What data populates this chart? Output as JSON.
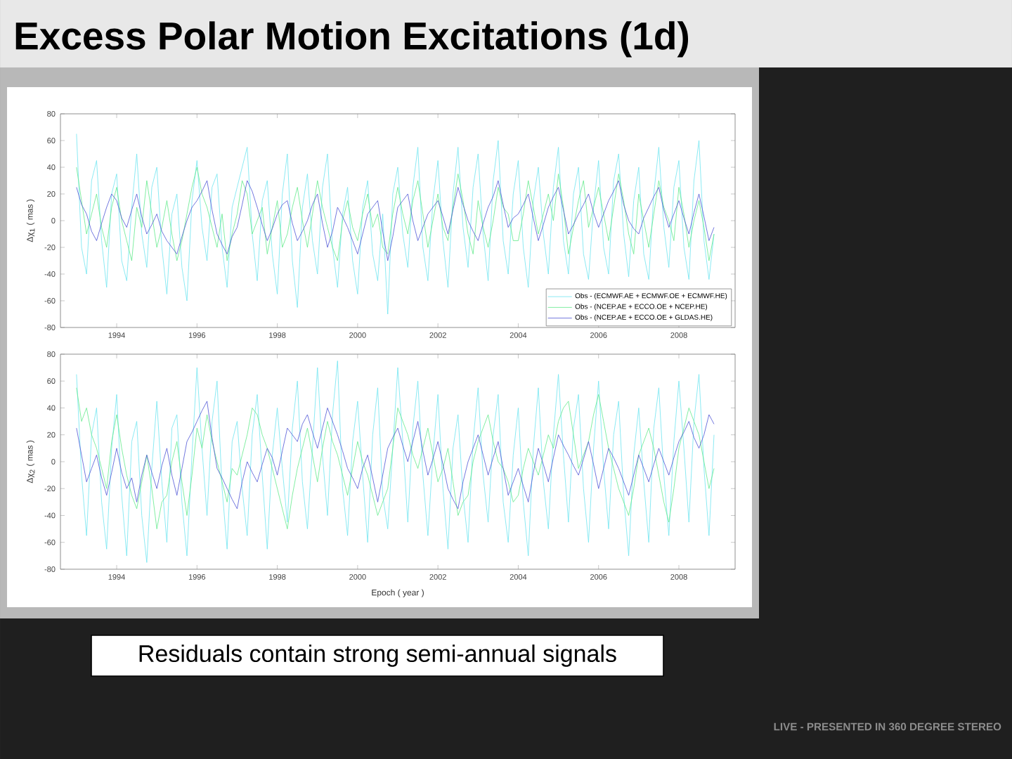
{
  "chart_data": [
    {
      "type": "line",
      "title": "Excess Polar Motion Excitations (1d)",
      "ylabel": "Δχ$_{1}$ ( mas )",
      "annotations": [
        "Residuals contain strong semi-annual signals",
        "LIVE - PRESENTED IN 360 DEGREE STEREO"
      ],
      "x": [
        1993,
        1993.125,
        1993.25,
        1993.375,
        1993.5,
        1993.625,
        1993.75,
        1993.875,
        1994,
        1994.125,
        1994.25,
        1994.375,
        1994.5,
        1994.625,
        1994.75,
        1994.875,
        1995,
        1995.125,
        1995.25,
        1995.375,
        1995.5,
        1995.625,
        1995.75,
        1995.875,
        1996,
        1996.125,
        1996.25,
        1996.375,
        1996.5,
        1996.625,
        1996.75,
        1996.875,
        1997,
        1997.125,
        1997.25,
        1997.375,
        1997.5,
        1997.625,
        1997.75,
        1997.875,
        1998,
        1998.125,
        1998.25,
        1998.375,
        1998.5,
        1998.625,
        1998.75,
        1998.875,
        1999,
        1999.125,
        1999.25,
        1999.375,
        1999.5,
        1999.625,
        1999.75,
        1999.875,
        2000,
        2000.125,
        2000.25,
        2000.375,
        2000.5,
        2000.625,
        2000.75,
        2000.875,
        2001,
        2001.125,
        2001.25,
        2001.375,
        2001.5,
        2001.625,
        2001.75,
        2001.875,
        2002,
        2002.125,
        2002.25,
        2002.375,
        2002.5,
        2002.625,
        2002.75,
        2002.875,
        2003,
        2003.125,
        2003.25,
        2003.375,
        2003.5,
        2003.625,
        2003.75,
        2003.875,
        2004,
        2004.125,
        2004.25,
        2004.375,
        2004.5,
        2004.625,
        2004.75,
        2004.875,
        2005,
        2005.125,
        2005.25,
        2005.375,
        2005.5,
        2005.625,
        2005.75,
        2005.875,
        2006,
        2006.125,
        2006.25,
        2006.375,
        2006.5,
        2006.625,
        2006.75,
        2006.875,
        2007,
        2007.125,
        2007.25,
        2007.375,
        2007.5,
        2007.625,
        2007.75,
        2007.875,
        2008,
        2008.125,
        2008.25,
        2008.375,
        2008.5,
        2008.625,
        2008.75,
        2008.875
      ],
      "xlim": [
        1992.6,
        2009.4
      ],
      "xticks": [
        1994,
        1996,
        1998,
        2000,
        2002,
        2004,
        2006,
        2008
      ],
      "ylim": [
        -80,
        80
      ],
      "yticks": [
        -80,
        -60,
        -40,
        -20,
        0,
        20,
        40,
        60,
        80
      ],
      "legend": "bottom right",
      "marker": "none",
      "series": [
        {
          "name": "Obs - (ECMWF.AE + ECMWF.OE + ECMWF.HE)",
          "color": "#6ee4f0",
          "values": [
            65,
            -20,
            -40,
            30,
            45,
            -15,
            -50,
            20,
            35,
            -30,
            -45,
            10,
            50,
            -10,
            -35,
            25,
            40,
            -20,
            -55,
            5,
            20,
            -35,
            -60,
            15,
            45,
            -5,
            -30,
            25,
            35,
            -20,
            -50,
            10,
            25,
            40,
            55,
            -10,
            -45,
            15,
            30,
            -25,
            -55,
            20,
            50,
            -30,
            -65,
            10,
            35,
            -15,
            -40,
            25,
            50,
            -20,
            -50,
            5,
            25,
            -30,
            -55,
            10,
            30,
            -25,
            -45,
            5,
            -70,
            20,
            40,
            -10,
            -35,
            25,
            55,
            -20,
            -45,
            15,
            45,
            -15,
            -50,
            20,
            55,
            -5,
            -35,
            25,
            50,
            -10,
            -45,
            30,
            60,
            -15,
            -40,
            20,
            45,
            -20,
            -50,
            15,
            40,
            -10,
            -40,
            25,
            55,
            -15,
            -40,
            20,
            40,
            -25,
            -44,
            10,
            45,
            -20,
            -40,
            30,
            50,
            -10,
            -42,
            15,
            40,
            -25,
            -44,
            20,
            55,
            -5,
            -35,
            25,
            45,
            -20,
            -44,
            30,
            60,
            -15,
            -44,
            -10
          ]
        },
        {
          "name": "Obs - (NCEP.AE + ECCO.OE + NCEP.HE)",
          "color": "#62ea8c",
          "values": [
            40,
            15,
            -10,
            5,
            20,
            -5,
            -20,
            10,
            25,
            0,
            -15,
            -30,
            10,
            -5,
            30,
            5,
            -20,
            -5,
            15,
            -10,
            -30,
            -15,
            5,
            25,
            40,
            20,
            10,
            -5,
            -20,
            5,
            -30,
            -10,
            5,
            30,
            20,
            -10,
            0,
            10,
            -25,
            -5,
            15,
            -20,
            -10,
            10,
            25,
            0,
            -20,
            5,
            30,
            10,
            -5,
            -20,
            -30,
            0,
            15,
            -5,
            -15,
            5,
            20,
            -5,
            5,
            -20,
            -25,
            5,
            25,
            5,
            -10,
            15,
            30,
            5,
            -20,
            0,
            20,
            -5,
            -15,
            10,
            35,
            15,
            -10,
            -25,
            15,
            -5,
            -20,
            0,
            25,
            10,
            5,
            -15,
            -15,
            5,
            30,
            10,
            -10,
            5,
            20,
            0,
            35,
            10,
            -25,
            -5,
            15,
            30,
            -5,
            10,
            25,
            5,
            -15,
            10,
            35,
            15,
            -10,
            -25,
            20,
            0,
            -20,
            5,
            30,
            10,
            0,
            -15,
            25,
            5,
            -20,
            0,
            15,
            -5,
            -30,
            -10
          ]
        },
        {
          "name": "Obs - (NCEP.AE + ECCO.OE + GLDAS.HE)",
          "color": "#4f55d6",
          "values": [
            25,
            12,
            5,
            -8,
            -15,
            -2,
            10,
            20,
            15,
            2,
            -5,
            8,
            20,
            3,
            -10,
            -3,
            5,
            -8,
            -15,
            -20,
            -25,
            -12,
            0,
            10,
            15,
            22,
            30,
            8,
            -10,
            -18,
            -25,
            -12,
            -5,
            12,
            30,
            22,
            10,
            -3,
            -15,
            -6,
            5,
            12,
            15,
            -2,
            -15,
            -8,
            0,
            12,
            20,
            -2,
            -20,
            -8,
            10,
            3,
            -5,
            -15,
            -25,
            -10,
            5,
            10,
            15,
            -8,
            -30,
            -12,
            10,
            15,
            20,
            0,
            -15,
            -5,
            5,
            10,
            15,
            3,
            -10,
            8,
            25,
            12,
            0,
            -8,
            -15,
            -2,
            10,
            18,
            30,
            12,
            -5,
            2,
            5,
            12,
            20,
            2,
            -15,
            -3,
            10,
            18,
            25,
            8,
            -10,
            -3,
            5,
            12,
            20,
            6,
            -5,
            5,
            15,
            22,
            30,
            12,
            0,
            -6,
            -10,
            2,
            10,
            18,
            25,
            8,
            -5,
            5,
            15,
            2,
            -10,
            6,
            20,
            3,
            -15,
            -5
          ]
        }
      ]
    },
    {
      "type": "line",
      "xlabel": "Epoch ( year )",
      "ylabel": "Δχ$_{2}$ ( mas )",
      "x": [
        1993,
        1993.125,
        1993.25,
        1993.375,
        1993.5,
        1993.625,
        1993.75,
        1993.875,
        1994,
        1994.125,
        1994.25,
        1994.375,
        1994.5,
        1994.625,
        1994.75,
        1994.875,
        1995,
        1995.125,
        1995.25,
        1995.375,
        1995.5,
        1995.625,
        1995.75,
        1995.875,
        1996,
        1996.125,
        1996.25,
        1996.375,
        1996.5,
        1996.625,
        1996.75,
        1996.875,
        1997,
        1997.125,
        1997.25,
        1997.375,
        1997.5,
        1997.625,
        1997.75,
        1997.875,
        1998,
        1998.125,
        1998.25,
        1998.375,
        1998.5,
        1998.625,
        1998.75,
        1998.875,
        1999,
        1999.125,
        1999.25,
        1999.375,
        1999.5,
        1999.625,
        1999.75,
        1999.875,
        2000,
        2000.125,
        2000.25,
        2000.375,
        2000.5,
        2000.625,
        2000.75,
        2000.875,
        2001,
        2001.125,
        2001.25,
        2001.375,
        2001.5,
        2001.625,
        2001.75,
        2001.875,
        2002,
        2002.125,
        2002.25,
        2002.375,
        2002.5,
        2002.625,
        2002.75,
        2002.875,
        2003,
        2003.125,
        2003.25,
        2003.375,
        2003.5,
        2003.625,
        2003.75,
        2003.875,
        2004,
        2004.125,
        2004.25,
        2004.375,
        2004.5,
        2004.625,
        2004.75,
        2004.875,
        2005,
        2005.125,
        2005.25,
        2005.375,
        2005.5,
        2005.625,
        2005.75,
        2005.875,
        2006,
        2006.125,
        2006.25,
        2006.375,
        2006.5,
        2006.625,
        2006.75,
        2006.875,
        2007,
        2007.125,
        2007.25,
        2007.375,
        2007.5,
        2007.625,
        2007.75,
        2007.875,
        2008,
        2008.125,
        2008.25,
        2008.375,
        2008.5,
        2008.625,
        2008.75,
        2008.875
      ],
      "xlim": [
        1992.6,
        2009.4
      ],
      "xticks": [
        1994,
        1996,
        1998,
        2000,
        2002,
        2004,
        2006,
        2008
      ],
      "ylim": [
        -80,
        80
      ],
      "yticks": [
        -80,
        -60,
        -40,
        -20,
        0,
        20,
        40,
        60,
        80
      ],
      "marker": "none",
      "series": [
        {
          "color": "#6ee4f0",
          "values": [
            65,
            -10,
            -55,
            20,
            40,
            -30,
            -65,
            10,
            50,
            -25,
            -70,
            15,
            30,
            -40,
            -75,
            -5,
            45,
            -15,
            -60,
            25,
            35,
            -30,
            -70,
            5,
            70,
            10,
            -40,
            30,
            60,
            -20,
            -65,
            15,
            30,
            -20,
            -55,
            20,
            50,
            -10,
            -65,
            5,
            40,
            -5,
            -45,
            25,
            60,
            -15,
            -50,
            10,
            70,
            5,
            -40,
            35,
            75,
            -20,
            -55,
            15,
            45,
            -10,
            -60,
            20,
            55,
            -25,
            -50,
            10,
            70,
            15,
            -45,
            25,
            60,
            -10,
            -55,
            5,
            50,
            -20,
            -65,
            10,
            35,
            -25,
            -60,
            15,
            55,
            -10,
            -45,
            20,
            50,
            -30,
            -60,
            5,
            40,
            -30,
            -70,
            10,
            55,
            -15,
            -50,
            20,
            65,
            5,
            -45,
            25,
            50,
            -20,
            -60,
            10,
            60,
            -5,
            -50,
            20,
            45,
            -25,
            -70,
            5,
            40,
            -15,
            -60,
            25,
            55,
            -10,
            -55,
            15,
            60,
            10,
            -45,
            30,
            65,
            -5,
            -55,
            20
          ]
        },
        {
          "color": "#62ea8c",
          "values": [
            55,
            30,
            40,
            20,
            10,
            -5,
            -20,
            15,
            35,
            10,
            -10,
            -25,
            -35,
            -15,
            5,
            -20,
            -50,
            -30,
            -25,
            0,
            15,
            -15,
            -40,
            -10,
            25,
            10,
            35,
            15,
            0,
            -15,
            -30,
            -5,
            -10,
            5,
            20,
            40,
            35,
            20,
            10,
            -5,
            -20,
            -35,
            -50,
            -25,
            -5,
            10,
            25,
            5,
            -15,
            10,
            30,
            15,
            5,
            -10,
            -25,
            -5,
            15,
            0,
            -10,
            -25,
            -40,
            -30,
            -20,
            10,
            40,
            30,
            20,
            5,
            -5,
            10,
            25,
            5,
            -15,
            -5,
            10,
            -15,
            -40,
            -30,
            -25,
            0,
            15,
            25,
            35,
            15,
            0,
            -5,
            -15,
            -30,
            -25,
            -5,
            10,
            0,
            -10,
            5,
            20,
            10,
            30,
            40,
            45,
            20,
            -5,
            5,
            15,
            35,
            50,
            30,
            10,
            -5,
            -20,
            -30,
            -40,
            -20,
            5,
            15,
            25,
            10,
            -10,
            -30,
            -45,
            -20,
            10,
            25,
            40,
            30,
            20,
            0,
            -20,
            -5
          ]
        },
        {
          "color": "#4f55d6",
          "values": [
            25,
            5,
            -15,
            -5,
            5,
            -12,
            -25,
            -8,
            10,
            -8,
            -20,
            -12,
            -30,
            -10,
            5,
            -8,
            -20,
            -3,
            10,
            -10,
            -25,
            -5,
            15,
            22,
            30,
            38,
            45,
            18,
            -5,
            -12,
            -20,
            -28,
            -35,
            -15,
            0,
            -8,
            -15,
            -2,
            10,
            3,
            -10,
            8,
            25,
            20,
            15,
            28,
            35,
            22,
            10,
            25,
            40,
            30,
            20,
            8,
            -5,
            -12,
            -20,
            -5,
            5,
            -12,
            -30,
            -10,
            10,
            18,
            25,
            12,
            0,
            15,
            30,
            8,
            -10,
            2,
            15,
            -2,
            -20,
            -28,
            -35,
            -15,
            0,
            10,
            20,
            5,
            -10,
            3,
            15,
            -5,
            -25,
            -15,
            -5,
            -18,
            -30,
            -8,
            10,
            -2,
            -15,
            3,
            20,
            12,
            5,
            -3,
            -10,
            2,
            15,
            -2,
            -20,
            -5,
            10,
            3,
            -5,
            -15,
            -25,
            -10,
            5,
            -5,
            -15,
            -2,
            10,
            0,
            -10,
            3,
            15,
            22,
            30,
            18,
            10,
            20,
            35,
            28
          ]
        }
      ]
    }
  ]
}
